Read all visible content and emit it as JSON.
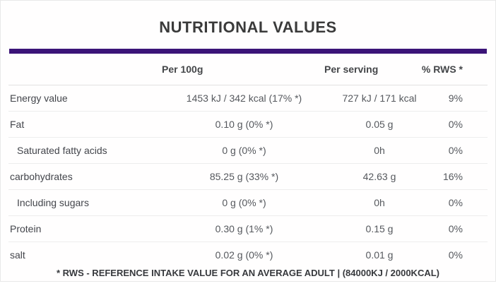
{
  "title": "NUTRITIONAL VALUES",
  "accent_color": "#3b1478",
  "table": {
    "headers": {
      "per_100g": "Per 100g",
      "per_serving": "Per serving",
      "rws": "% RWS *"
    },
    "rows": [
      {
        "label": "Energy value",
        "per_100g": "1453 kJ / 342 kcal (17% *)",
        "per_serving": "727 kJ / 171 kcal",
        "rws": "9%"
      },
      {
        "label": "Fat",
        "per_100g": "0.10 g (0% *)",
        "per_serving": "0.05 g",
        "rws": "0%"
      },
      {
        "label": "Saturated fatty acids",
        "per_100g": "0 g (0% *)",
        "per_serving": "0h",
        "rws": "0%"
      },
      {
        "label": "carbohydrates",
        "per_100g": "85.25 g (33% *)",
        "per_serving": "42.63 g",
        "rws": "16%"
      },
      {
        "label": "Including sugars",
        "per_100g": "0 g (0% *)",
        "per_serving": "0h",
        "rws": "0%"
      },
      {
        "label": "Protein",
        "per_100g": "0.30 g (1% *)",
        "per_serving": "0.15 g",
        "rws": "0%"
      },
      {
        "label": "salt",
        "per_100g": "0.02 g (0% *)",
        "per_serving": "0.01 g",
        "rws": "0%"
      }
    ]
  },
  "footer": "* RWS - REFERENCE INTAKE VALUE FOR AN AVERAGE ADULT | (84000KJ / 2000KCAL)"
}
